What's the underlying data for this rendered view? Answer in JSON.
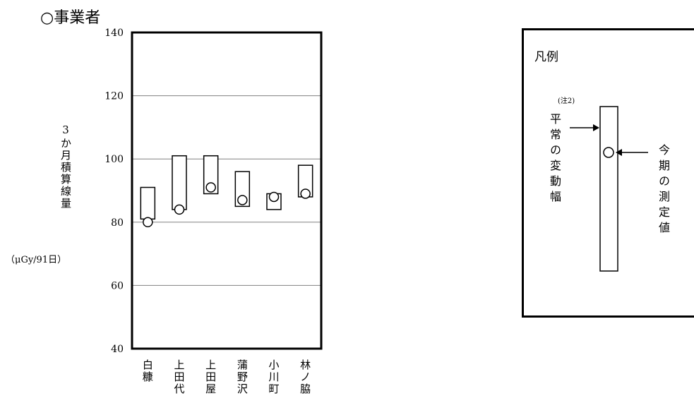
{
  "heading": "○事業者",
  "chart_data": {
    "type": "bar",
    "description_free": true,
    "categories": [
      "白糠",
      "上田代",
      "上田屋",
      "蒲野沢",
      "小川町",
      "林ノ脇"
    ],
    "ranges": [
      {
        "min": 81,
        "max": 91
      },
      {
        "min": 84,
        "max": 101
      },
      {
        "min": 89,
        "max": 101
      },
      {
        "min": 85,
        "max": 96
      },
      {
        "min": 84,
        "max": 89
      },
      {
        "min": 88,
        "max": 98
      }
    ],
    "measured": [
      80,
      84,
      91,
      87,
      88,
      89
    ],
    "ylabel": "3か月積算線量",
    "yunit": "（μGy/91日）",
    "ylim": [
      40,
      140
    ],
    "yticks": [
      "40",
      "60",
      "80",
      "100",
      "120",
      "140"
    ],
    "grid": true
  },
  "legend": {
    "title": "凡例",
    "note": "(注2)",
    "range_label": "平常の変動幅",
    "measured_label": "今期の測定値"
  }
}
